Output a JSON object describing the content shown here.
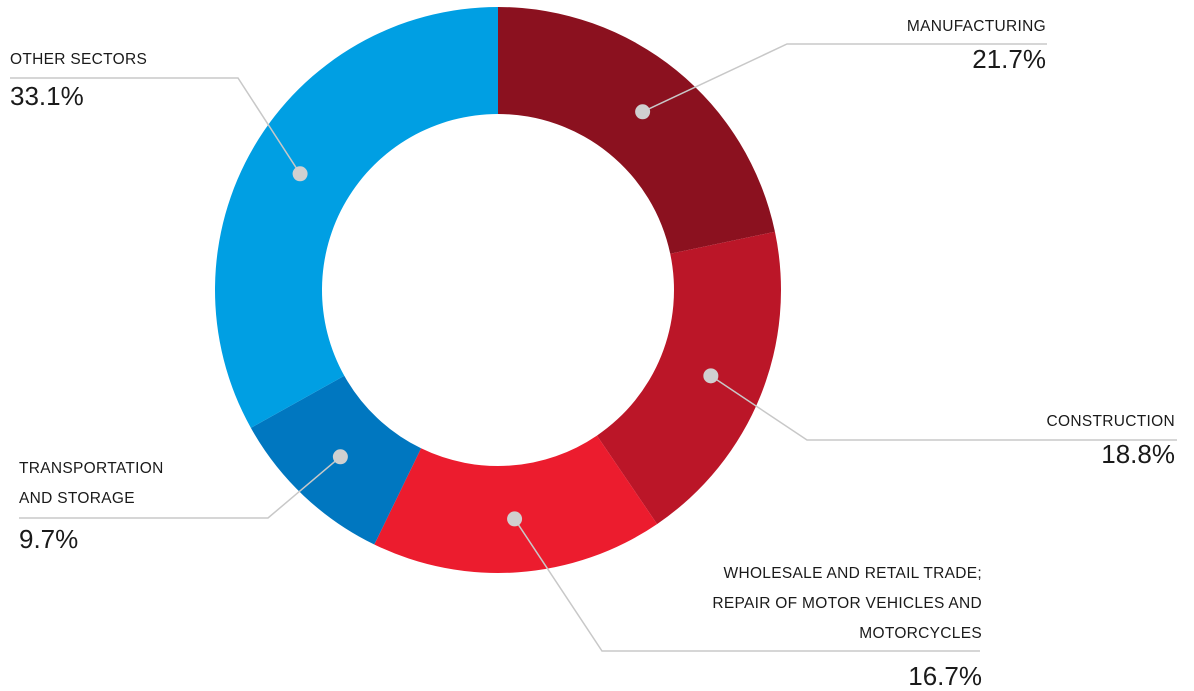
{
  "chart_data": {
    "type": "pie",
    "donut": true,
    "slices": [
      {
        "label_lines": [
          "MANUFACTURING"
        ],
        "value": 21.7,
        "value_label": "21.7%",
        "color": "#8b111f"
      },
      {
        "label_lines": [
          "CONSTRUCTION"
        ],
        "value": 18.8,
        "value_label": "18.8%",
        "color": "#bb1628"
      },
      {
        "label_lines": [
          "WHOLESALE AND RETAIL TRADE;",
          "REPAIR OF MOTOR VEHICLES AND",
          "MOTORCYCLES"
        ],
        "value": 16.7,
        "value_label": "16.7%",
        "color": "#ec1c2e"
      },
      {
        "label_lines": [
          "TRANSPORTATION",
          "AND STORAGE"
        ],
        "value": 9.7,
        "value_label": "9.7%",
        "color": "#0077c0"
      },
      {
        "label_lines": [
          "OTHER SECTORS"
        ],
        "value": 33.1,
        "value_label": "33.1%",
        "color": "#009fe3"
      }
    ],
    "start_angle": "12 o'clock",
    "direction": "clockwise",
    "leader_line_color": "#c8c8c8",
    "marker_color": "#d0d0d0"
  }
}
